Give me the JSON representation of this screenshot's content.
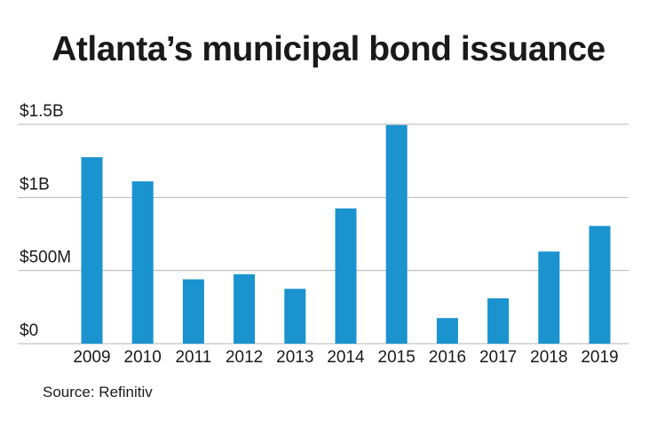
{
  "chart_data": {
    "type": "bar",
    "title": "Atlanta’s municipal bond issuance",
    "categories": [
      "2009",
      "2010",
      "2011",
      "2012",
      "2013",
      "2014",
      "2015",
      "2016",
      "2017",
      "2018",
      "2019"
    ],
    "values": [
      1275,
      1110,
      440,
      475,
      375,
      925,
      1495,
      175,
      310,
      630,
      805
    ],
    "unit": "$M",
    "ylim": [
      0,
      1500
    ],
    "yticks": [
      {
        "value": 0,
        "label": "$0"
      },
      {
        "value": 500,
        "label": "$500M"
      },
      {
        "value": 1000,
        "label": "$1B"
      },
      {
        "value": 1500,
        "label": "$1.5B"
      }
    ],
    "bar_color": "#1a93cf",
    "grid_color": "#b5b5b5",
    "xlabel": "",
    "ylabel": "",
    "grid": true,
    "source": "Source: Refinitiv"
  }
}
